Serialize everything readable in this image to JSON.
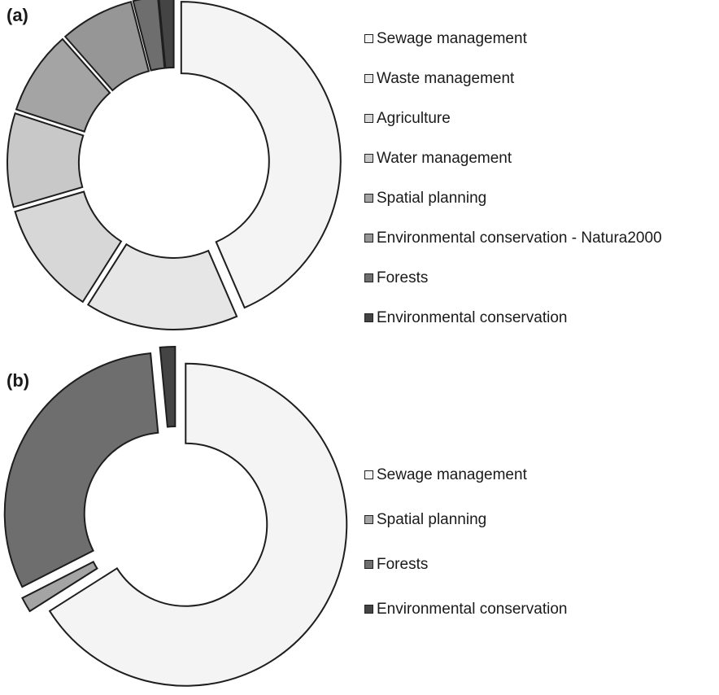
{
  "chart_data": [
    {
      "panel_label": "(a)",
      "type": "pie",
      "variant": "donut",
      "exploded": true,
      "legend_position": "right",
      "categories": [
        "Sewage management",
        "Waste management",
        "Agriculture",
        "Water management",
        "Spatial planning",
        "Environmental conservation - Natura2000",
        "Forests",
        "Environmental conservation"
      ],
      "values": [
        43.5,
        15.5,
        11.5,
        9.5,
        8.5,
        7.5,
        2.5,
        1.5
      ],
      "colors": [
        "#f4f4f4",
        "#e6e6e6",
        "#d7d7d7",
        "#c8c8c8",
        "#a4a4a4",
        "#969696",
        "#6e6e6e",
        "#444444"
      ]
    },
    {
      "panel_label": "(b)",
      "type": "pie",
      "variant": "donut",
      "exploded": true,
      "legend_position": "right",
      "categories": [
        "Sewage management",
        "Spatial planning",
        "Forests",
        "Environmental conservation"
      ],
      "values": [
        66,
        1.5,
        31,
        1.5
      ],
      "colors": [
        "#f4f4f4",
        "#a4a4a4",
        "#6e6e6e",
        "#444444"
      ]
    }
  ]
}
